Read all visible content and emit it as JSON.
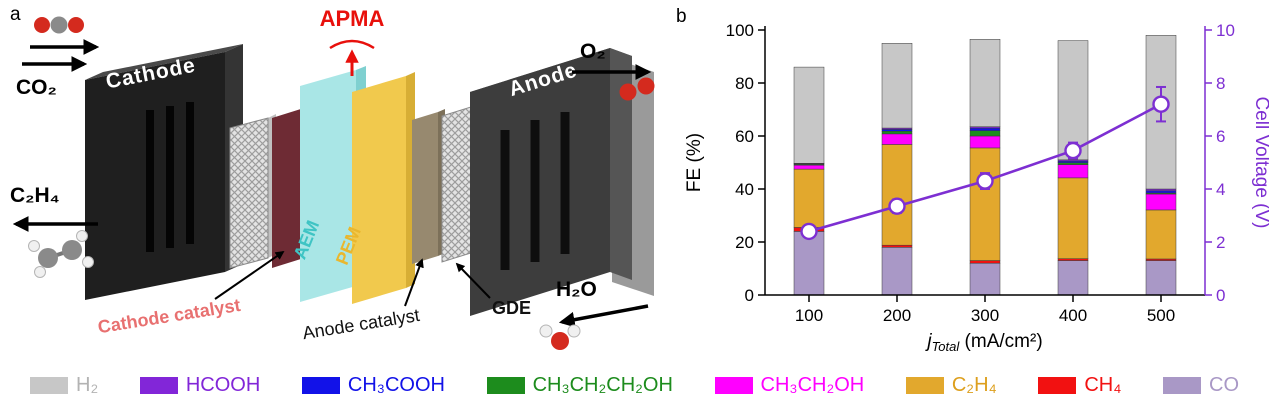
{
  "panels": {
    "a_label": "a",
    "b_label": "b"
  },
  "diagram": {
    "apma": "APMA",
    "cathode": "Cathode",
    "anode": "Anode",
    "co2": "CO₂",
    "o2": "O₂",
    "c2h4": "C₂H₄",
    "h2o": "H₂O",
    "aem": "AEM",
    "pem": "PEM",
    "cathode_catalyst": "Cathode catalyst",
    "anode_catalyst": "Anode catalyst",
    "gde": "GDE",
    "colors": {
      "cathode_plate": "#1f1f1f",
      "anode_plate": "#3d3d3d",
      "aem_plate": "#a9e6e6",
      "pem_plate": "#f1c94d",
      "cathode_catalyst_plate": "#6e2b34",
      "anode_catalyst_plate": "#97896f",
      "apma_red": "#e8100c",
      "cathode_catalyst_text": "#e87070",
      "aem_text": "#3fc4c4",
      "pem_text": "#e9b72e",
      "molecule_red": "#d42a1e",
      "molecule_gray": "#8a8a8a",
      "molecule_white": "#f0f0f0"
    }
  },
  "chart_data": {
    "type": "bar",
    "stacked": true,
    "categories": [
      "100",
      "200",
      "300",
      "400",
      "500"
    ],
    "series": [
      {
        "name": "CO",
        "color": "#a998c6",
        "values": [
          24,
          18,
          12,
          13,
          13
        ]
      },
      {
        "name": "CH₄",
        "color": "#f21111",
        "values": [
          1.5,
          0.8,
          1,
          0.7,
          0.6
        ]
      },
      {
        "name": "C₂H₄",
        "color": "#e2a82d",
        "values": [
          22,
          38,
          42.5,
          30.5,
          18.5
        ]
      },
      {
        "name": "CH₃CH₂OH",
        "color": "#ff00ff",
        "values": [
          1.5,
          4,
          4.5,
          5,
          6
        ]
      },
      {
        "name": "CH₃CH₂CH₂OH",
        "color": "#1d8c1d",
        "values": [
          0.3,
          1,
          2,
          0.7,
          0.4
        ]
      },
      {
        "name": "CH₃COOH",
        "color": "#1212e8",
        "values": [
          0.2,
          0.7,
          1,
          0.6,
          0.8
        ]
      },
      {
        "name": "HCOOH",
        "color": "#8226d8",
        "values": [
          0.2,
          0.5,
          0.5,
          0.5,
          0.7
        ]
      },
      {
        "name": "H₂",
        "color": "#c7c7c7",
        "values": [
          36.3,
          32,
          33,
          45,
          58
        ]
      }
    ],
    "line_series": {
      "name": "Cell Voltage",
      "color": "#7d2fd2",
      "values": [
        2.4,
        3.35,
        4.3,
        5.45,
        7.2
      ],
      "errors": [
        0.15,
        0.25,
        0.3,
        0.3,
        0.65
      ]
    },
    "ylabel": "FE (%)",
    "ylim": [
      0,
      100
    ],
    "yticks": [
      0,
      20,
      40,
      60,
      80,
      100
    ],
    "y2label": "Cell Voltage (V)",
    "y2lim": [
      0,
      10
    ],
    "y2ticks": [
      0,
      2,
      4,
      6,
      8,
      10
    ],
    "xlabel_var": "j",
    "xlabel_sub": "Total",
    "xlabel_rest": " (mA/cm²)",
    "legend_position": "bottom"
  },
  "legend": {
    "items": [
      {
        "label": "H₂",
        "color": "#c7c7c7",
        "text_color": "#b3b3b3"
      },
      {
        "label": "HCOOH",
        "color": "#8226d8",
        "text_color": "#8226d8"
      },
      {
        "label": "CH₃COOH",
        "color": "#1212e8",
        "text_color": "#1212e8"
      },
      {
        "label": "CH₃CH₂CH₂OH",
        "color": "#1d8c1d",
        "text_color": "#1d8c1d"
      },
      {
        "label": "CH₃CH₂OH",
        "color": "#ff00ff",
        "text_color": "#ff00ff"
      },
      {
        "label": "C₂H₄",
        "color": "#e2a82d",
        "text_color": "#dd9f1d"
      },
      {
        "label": "CH₄",
        "color": "#f21111",
        "text_color": "#f21111"
      },
      {
        "label": "CO",
        "color": "#a998c6",
        "text_color": "#a998c6"
      }
    ]
  }
}
